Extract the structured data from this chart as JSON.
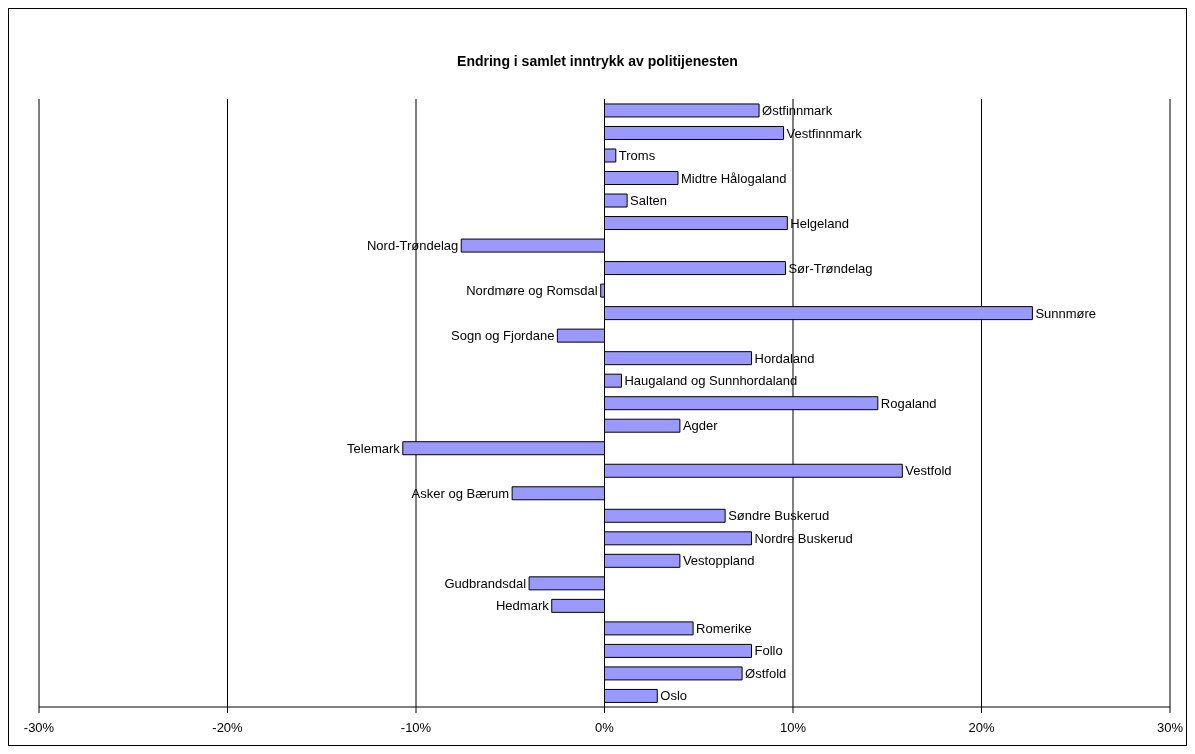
{
  "chart_data": {
    "type": "bar",
    "orientation": "horizontal",
    "title": "Endring i samlet inntrykk av politijenesten",
    "categories": [
      "Østfinnmark",
      "Vestfinnmark",
      "Troms",
      "Midtre Hålogaland",
      "Salten",
      "Helgeland",
      "Nord-Trøndelag",
      "Sør-Trøndelag",
      "Nordmøre og Romsdal",
      "Sunnmøre",
      "Sogn og Fjordane",
      "Hordaland",
      "Haugaland og Sunnhordaland",
      "Rogaland",
      "Agder",
      "Telemark",
      "Vestfold",
      "Asker og Bærum",
      "Søndre Buskerud",
      "Nordre Buskerud",
      "Vestoppland",
      "Gudbrandsdal",
      "Hedmark",
      "Romerike",
      "Follo",
      "Østfold",
      "Oslo"
    ],
    "values": [
      8.2,
      9.5,
      0.6,
      3.9,
      1.2,
      9.7,
      -7.6,
      9.6,
      -0.2,
      22.7,
      -2.5,
      7.8,
      0.9,
      14.5,
      4.0,
      -10.7,
      15.8,
      -4.9,
      6.4,
      7.8,
      4.0,
      -4.0,
      -2.8,
      4.7,
      7.8,
      7.3,
      2.8
    ],
    "color": "#9999ff",
    "xlim": [
      -30,
      30
    ],
    "xticks": [
      {
        "value": -30,
        "label": "-30%"
      },
      {
        "value": -20,
        "label": "-20%"
      },
      {
        "value": -10,
        "label": "-10%"
      },
      {
        "value": 0,
        "label": "0%"
      },
      {
        "value": 10,
        "label": "10%"
      },
      {
        "value": 20,
        "label": "20%"
      },
      {
        "value": 30,
        "label": "30%"
      }
    ],
    "grid": "x",
    "legend": false,
    "tick_labels": "x"
  }
}
